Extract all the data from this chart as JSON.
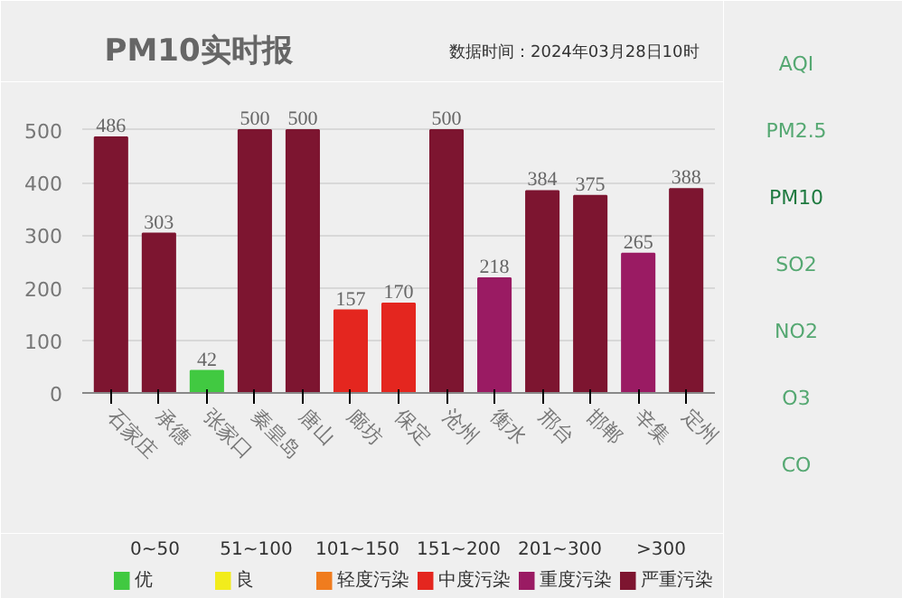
{
  "chart_data": {
    "type": "bar",
    "title": "PM10实时报",
    "subtitle": "数据时间：2024年03月28日10时",
    "categories": [
      "石家庄",
      "承德",
      "张家口",
      "秦皇岛",
      "唐山",
      "廊坊",
      "保定",
      "沧州",
      "衡水",
      "邢台",
      "邯郸",
      "辛集",
      "定州"
    ],
    "series": [
      {
        "name": "优",
        "color": "#41c941",
        "values": [
          null,
          null,
          42,
          null,
          null,
          null,
          null,
          null,
          null,
          null,
          null,
          null,
          null
        ]
      },
      {
        "name": "良",
        "color": "#f2ec1c",
        "values": [
          null,
          null,
          null,
          null,
          null,
          null,
          null,
          null,
          null,
          null,
          null,
          null,
          null
        ]
      },
      {
        "name": "轻度污染",
        "color": "#f07c1e",
        "values": [
          null,
          null,
          null,
          null,
          null,
          null,
          null,
          null,
          null,
          null,
          null,
          null,
          null
        ]
      },
      {
        "name": "中度污染",
        "color": "#e4261f",
        "values": [
          null,
          null,
          null,
          null,
          null,
          157,
          170,
          null,
          null,
          null,
          null,
          null,
          null
        ]
      },
      {
        "name": "重度污染",
        "color": "#9a1b63",
        "values": [
          null,
          null,
          null,
          null,
          null,
          null,
          null,
          null,
          218,
          null,
          null,
          265,
          null
        ]
      },
      {
        "name": "严重污染",
        "color": "#7d1530",
        "values": [
          486,
          303,
          null,
          500,
          500,
          null,
          null,
          500,
          null,
          384,
          375,
          null,
          388
        ]
      }
    ],
    "data_labels": true,
    "ylim": [
      0,
      560
    ],
    "yticks": [
      0,
      100,
      200,
      300,
      400,
      500
    ],
    "grid": "y",
    "legend": "bottom",
    "annotations": [
      "AQI",
      "PM2.5",
      "PM10",
      "SO2",
      "NO2",
      "O3",
      "CO",
      "0~50",
      "51~100",
      "101~150",
      "151~200",
      "201~300",
      ">300"
    ]
  }
}
